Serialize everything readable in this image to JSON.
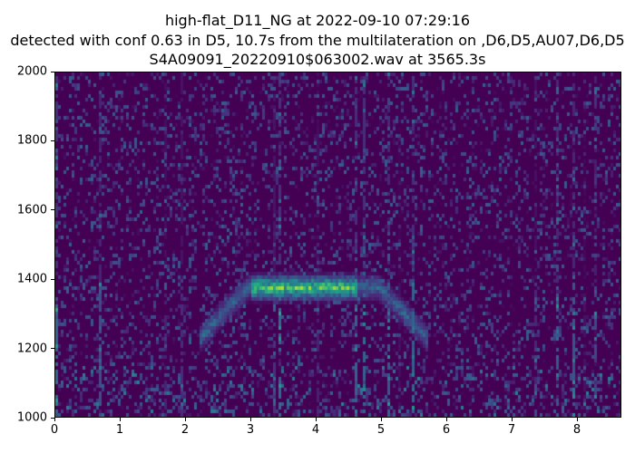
{
  "chart_data": {
    "type": "heatmap",
    "title_lines": [
      "high-flat_D11_NG at 2022-09-10 07:29:16",
      "detected with conf 0.63 in D5, 10.7s from the multilateration on ,D6,D5,AU07,D6,D5",
      "S4A09091_20220910$063002.wav at 3565.3s"
    ],
    "xlabel": "",
    "ylabel": "",
    "xlim": [
      0,
      8.68
    ],
    "ylim": [
      1000,
      2000
    ],
    "xticks": [
      "0",
      "1",
      "2",
      "3",
      "4",
      "5",
      "6",
      "7",
      "8"
    ],
    "yticks": [
      "1000",
      "1200",
      "1400",
      "1600",
      "1800",
      "2000"
    ],
    "colormap": "viridis",
    "grid": false,
    "features": [
      {
        "type": "arc",
        "x_start": 2.2,
        "x_end": 5.7,
        "y_peak": 1400,
        "y_end": 1250,
        "peak_intensity_x": [
          3.0,
          4.6
        ]
      }
    ]
  }
}
